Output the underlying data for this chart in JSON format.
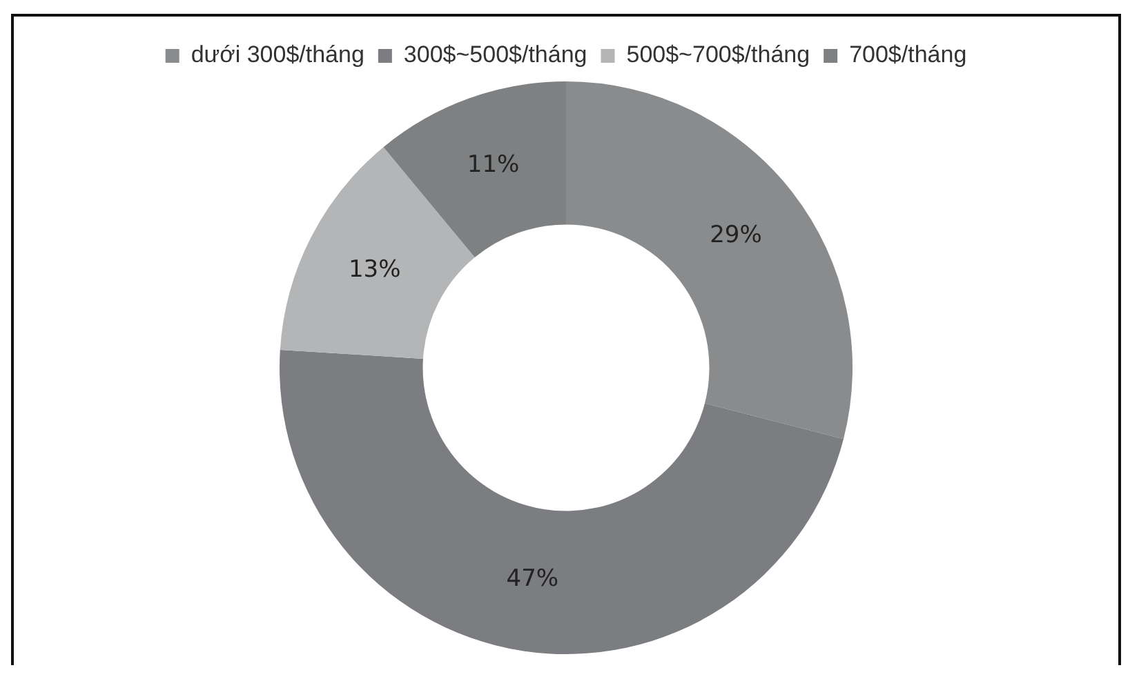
{
  "chart_data": {
    "type": "donut",
    "categories": [
      "dưới 300$/tháng",
      "300$~500$/tháng",
      "500$~700$/tháng",
      "700$/tháng"
    ],
    "values": [
      29,
      47,
      13,
      11
    ],
    "value_labels": [
      "29%",
      "47%",
      "13%",
      "11%"
    ],
    "colors": [
      "#898b8d",
      "#7b7d80",
      "#b4b5b6",
      "#7f8082"
    ],
    "legend": "top"
  }
}
